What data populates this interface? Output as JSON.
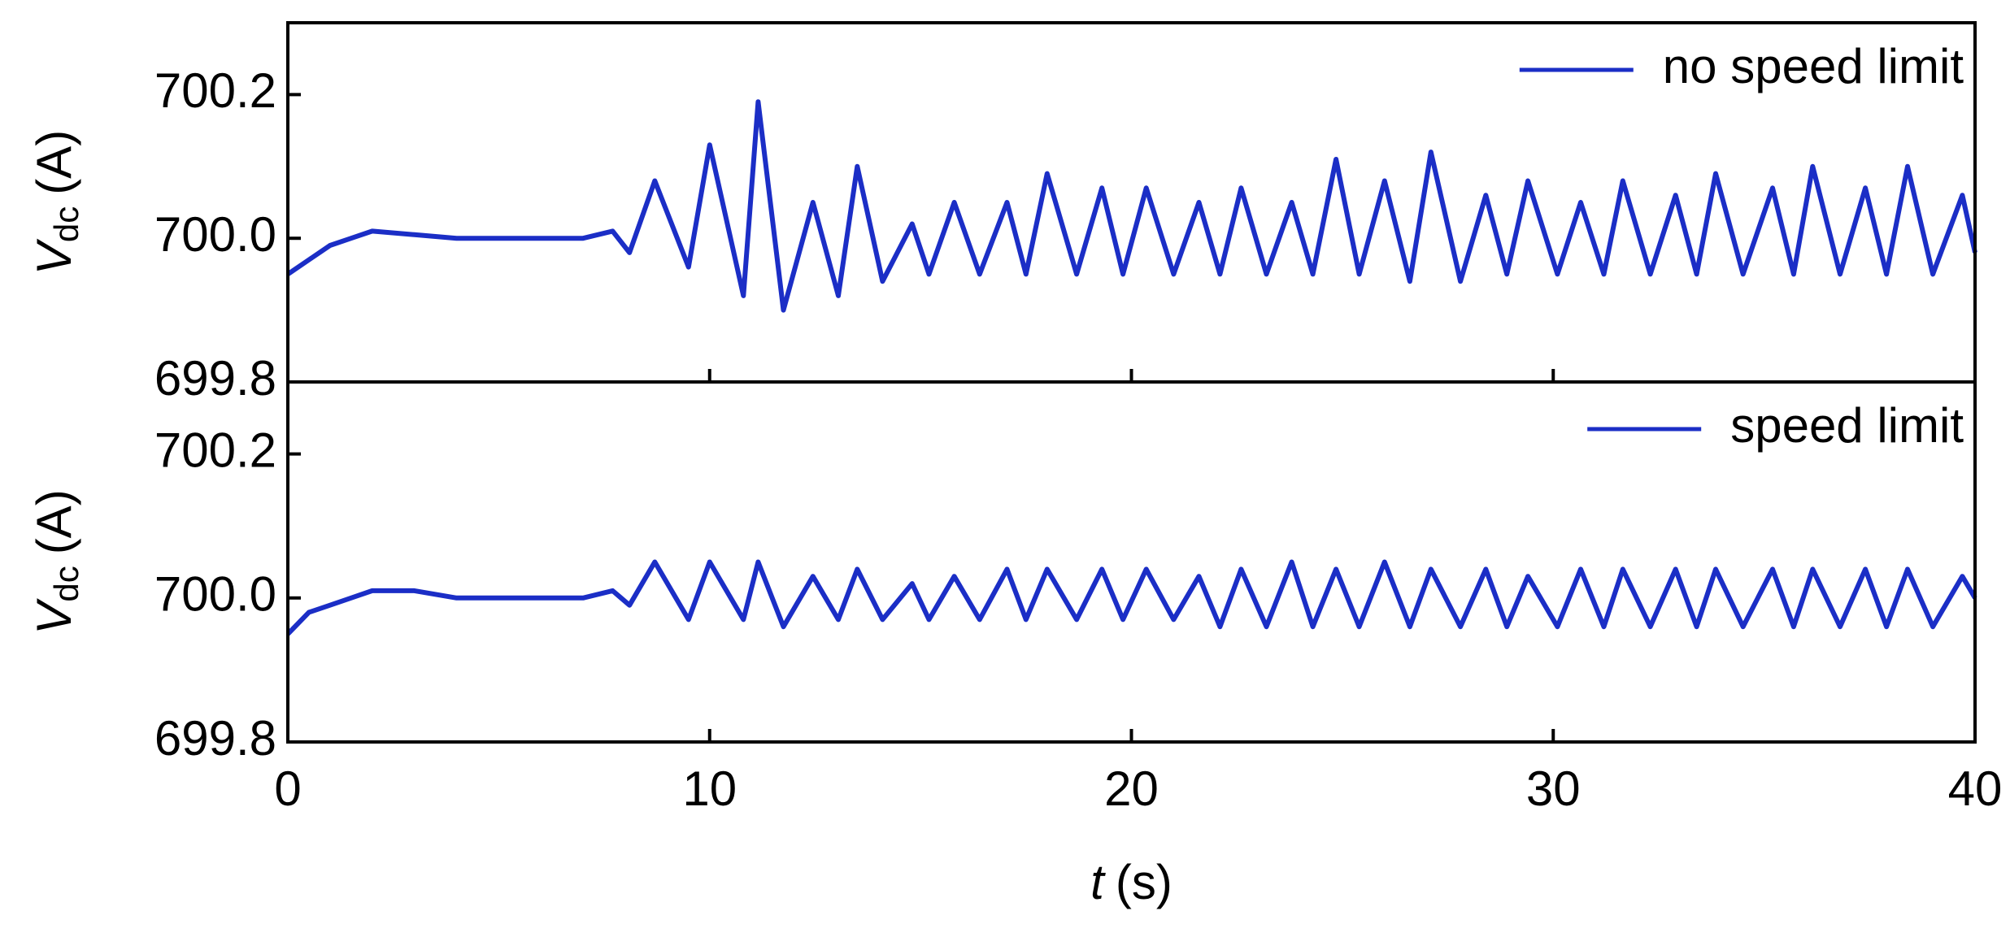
{
  "chart_data": [
    {
      "type": "line",
      "ylabel": [
        "V",
        "dc",
        "(A)"
      ],
      "legend": "upper right",
      "xlim": [
        0,
        40
      ],
      "ylim": [
        699.8,
        700.3
      ],
      "yticks": [
        699.8,
        {
          "value": 700,
          "label": "700.0"
        },
        700.2
      ],
      "x": [
        0,
        0.5,
        1,
        1.5,
        2,
        3,
        4,
        5,
        6,
        7,
        7.7,
        8.1,
        8.7,
        9.5,
        10.0,
        10.8,
        11.15,
        11.75,
        12.45,
        13.05,
        13.5,
        14.1,
        14.8,
        15.2,
        15.8,
        16.4,
        17.05,
        17.5,
        18.0,
        18.7,
        19.3,
        19.8,
        20.35,
        21.0,
        21.6,
        22.1,
        22.6,
        23.2,
        23.8,
        24.3,
        24.85,
        25.4,
        26.0,
        26.6,
        27.1,
        27.8,
        28.4,
        28.9,
        29.4,
        30.1,
        30.65,
        31.2,
        31.65,
        32.3,
        32.9,
        33.4,
        33.85,
        34.5,
        35.2,
        35.7,
        36.15,
        36.8,
        37.4,
        37.9,
        38.4,
        39.0,
        39.7,
        40
      ],
      "series": [
        {
          "name": "no speed limit",
          "color": "#1b2ec6",
          "values": [
            699.95,
            699.97,
            699.99,
            700.0,
            700.01,
            700.005,
            700.0,
            700.0,
            700.0,
            700.0,
            700.01,
            699.98,
            700.08,
            699.96,
            700.13,
            699.92,
            700.19,
            699.9,
            700.05,
            699.92,
            700.1,
            699.94,
            700.02,
            699.95,
            700.05,
            699.95,
            700.05,
            699.95,
            700.09,
            699.95,
            700.07,
            699.95,
            700.07,
            699.95,
            700.05,
            699.95,
            700.07,
            699.95,
            700.05,
            699.95,
            700.11,
            699.95,
            700.08,
            699.94,
            700.12,
            699.94,
            700.06,
            699.95,
            700.08,
            699.95,
            700.05,
            699.95,
            700.08,
            699.95,
            700.06,
            699.95,
            700.09,
            699.95,
            700.07,
            699.95,
            700.1,
            699.95,
            700.07,
            699.95,
            700.1,
            699.95,
            700.06,
            699.98
          ]
        }
      ]
    },
    {
      "type": "line",
      "ylabel": [
        "V",
        "dc",
        "(A)"
      ],
      "xlabel": [
        "t",
        "(s)"
      ],
      "legend": "upper right",
      "xlim": [
        0,
        40
      ],
      "ylim": [
        699.8,
        700.3
      ],
      "xticks": [
        0,
        10,
        20,
        30,
        40
      ],
      "yticks": [
        699.8,
        {
          "value": 700,
          "label": "700.0"
        },
        700.2
      ],
      "x": [
        0,
        0.5,
        1,
        1.5,
        2,
        3,
        4,
        5,
        6,
        7,
        7.7,
        8.1,
        8.7,
        9.5,
        10.0,
        10.8,
        11.15,
        11.75,
        12.45,
        13.05,
        13.5,
        14.1,
        14.8,
        15.2,
        15.8,
        16.4,
        17.05,
        17.5,
        18.0,
        18.7,
        19.3,
        19.8,
        20.35,
        21.0,
        21.6,
        22.1,
        22.6,
        23.2,
        23.8,
        24.3,
        24.85,
        25.4,
        26.0,
        26.6,
        27.1,
        27.8,
        28.4,
        28.9,
        29.4,
        30.1,
        30.65,
        31.2,
        31.65,
        32.3,
        32.9,
        33.4,
        33.85,
        34.5,
        35.2,
        35.7,
        36.15,
        36.8,
        37.4,
        37.9,
        38.4,
        39.0,
        39.7,
        40
      ],
      "series": [
        {
          "name": "speed limit",
          "color": "#1b2ec6",
          "values": [
            699.95,
            699.98,
            699.99,
            700.0,
            700.01,
            700.01,
            700.0,
            700.0,
            700.0,
            700.0,
            700.01,
            699.99,
            700.05,
            699.97,
            700.05,
            699.97,
            700.05,
            699.96,
            700.03,
            699.97,
            700.04,
            699.97,
            700.02,
            699.97,
            700.03,
            699.97,
            700.04,
            699.97,
            700.04,
            699.97,
            700.04,
            699.97,
            700.04,
            699.97,
            700.03,
            699.96,
            700.04,
            699.96,
            700.05,
            699.96,
            700.04,
            699.96,
            700.05,
            699.96,
            700.04,
            699.96,
            700.04,
            699.96,
            700.03,
            699.96,
            700.04,
            699.96,
            700.04,
            699.96,
            700.04,
            699.96,
            700.04,
            699.96,
            700.04,
            699.96,
            700.04,
            699.96,
            700.04,
            699.96,
            700.04,
            699.96,
            700.03,
            700.0
          ]
        }
      ]
    }
  ]
}
